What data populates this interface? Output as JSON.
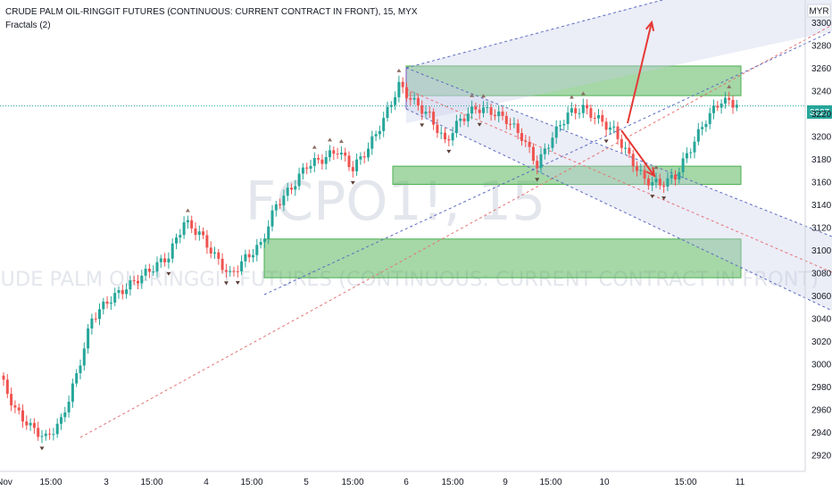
{
  "header": {
    "title": "CRUDE PALM OIL-RINGGIT FUTURES (CONTINUOUS: CURRENT CONTRACT IN FRONT), 15, MYX",
    "indicator": "Fractals (2)"
  },
  "watermark": {
    "symbol": "FCPO1!, 15",
    "name": "CRUDE PALM OIL-RINGGIT FUTURES (CONTINUOUS: CURRENT CONTRACT IN FRONT)"
  },
  "axis": {
    "currency": "MYR",
    "current_price": "3227"
  },
  "colors": {
    "up": "#26a69a",
    "down": "#ef5350",
    "zone": "#4caf50",
    "channel": "#9fa8da",
    "arrow": "#e53935"
  },
  "chart_data": {
    "type": "candlestick",
    "title": "CRUDE PALM OIL-RINGGIT FUTURES (CONTINUOUS: CURRENT CONTRACT IN FRONT), 15, MYX",
    "timeframe": "15",
    "exchange": "MYX",
    "indicator": "Fractals (2)",
    "ylim": [
      2912,
      3323
    ],
    "y_ticks": [
      2920,
      2940,
      2960,
      2980,
      3000,
      3020,
      3040,
      3060,
      3080,
      3100,
      3120,
      3140,
      3160,
      3180,
      3200,
      3220,
      3240,
      3260,
      3280,
      3300
    ],
    "x_ticks": [
      "Nov",
      "15:00",
      "3",
      "15:00",
      "4",
      "15:00",
      "5",
      "15:00",
      "6",
      "15:00",
      "9",
      "15:00",
      "10",
      "15:00",
      "11"
    ],
    "last_price": 3227,
    "series": [
      {
        "name": "FCPO1!",
        "path": [
          2990,
          2960,
          2945,
          2935,
          2950,
          2990,
          3040,
          3055,
          3065,
          3075,
          3085,
          3095,
          3125,
          3115,
          3095,
          3078,
          3093,
          3105,
          3140,
          3155,
          3175,
          3180,
          3188,
          3172,
          3190,
          3215,
          3245,
          3230,
          3218,
          3195,
          3215,
          3225,
          3222,
          3215,
          3200,
          3175,
          3200,
          3220,
          3225,
          3215,
          3205,
          3182,
          3162,
          3158,
          3165,
          3190,
          3215,
          3232,
          3228
        ]
      }
    ],
    "zones": [
      {
        "from": 3236,
        "to": 3262
      },
      {
        "from": 3158,
        "to": 3174
      },
      {
        "from": 3076,
        "to": 3110
      }
    ],
    "channel_up": {
      "start": [
        "6",
        3266
      ],
      "mid": [
        "6",
        3202
      ],
      "start_lower": [
        "6",
        3138
      ]
    },
    "channel_down": {
      "start": [
        "6",
        3266
      ],
      "lower_start": [
        "6",
        3228
      ]
    },
    "projection_up": {
      "from": 3215,
      "to": 3310
    },
    "projection_down": {
      "from": 3222,
      "to": 3170
    }
  }
}
